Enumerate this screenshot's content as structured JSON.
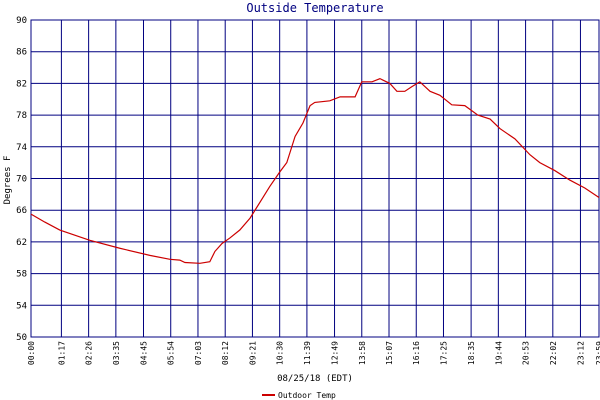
{
  "chart_data": {
    "type": "line",
    "title": "Outside Temperature",
    "x_label": "08/25/18 (EDT)",
    "y_label": "Degrees F",
    "x": [
      0,
      35,
      73,
      149,
      225,
      301,
      352,
      377,
      390,
      428,
      453,
      466,
      484,
      504,
      529,
      555,
      580,
      605,
      630,
      648,
      669,
      689,
      707,
      719,
      757,
      783,
      821,
      838,
      864,
      884,
      909,
      927,
      947,
      965,
      985,
      1011,
      1036,
      1066,
      1099,
      1132,
      1163,
      1188,
      1226,
      1264,
      1289,
      1327,
      1365,
      1403,
      1439
    ],
    "series": [
      {
        "name": "Outdoor Temp",
        "color": "#cc0000",
        "values": [
          65.5,
          64.5,
          63.5,
          62.2,
          61.2,
          60.3,
          59.8,
          59.7,
          59.4,
          59.3,
          59.5,
          60.8,
          61.8,
          62.5,
          63.5,
          65.0,
          67.0,
          69.0,
          70.8,
          72,
          75.3,
          77,
          79.2,
          79.6,
          79.8,
          80.3,
          80.3,
          82.2,
          82.2,
          82.6,
          82,
          81,
          81,
          81.6,
          82.2,
          81,
          80.5,
          79.3,
          79.2,
          78,
          77.5,
          76.3,
          75,
          73,
          72,
          71,
          69.8,
          68.8,
          67.6
        ]
      }
    ],
    "xlim": [
      0,
      1439
    ],
    "xticks": [
      {
        "value": 0,
        "label": "00:00"
      },
      {
        "value": 77,
        "label": "01:17"
      },
      {
        "value": 146,
        "label": "02:26"
      },
      {
        "value": 215,
        "label": "03:35"
      },
      {
        "value": 285,
        "label": "04:45"
      },
      {
        "value": 354,
        "label": "05:54"
      },
      {
        "value": 423,
        "label": "07:03"
      },
      {
        "value": 492,
        "label": "08:12"
      },
      {
        "value": 561,
        "label": "09:21"
      },
      {
        "value": 630,
        "label": "10:30"
      },
      {
        "value": 699,
        "label": "11:39"
      },
      {
        "value": 769,
        "label": "12:49"
      },
      {
        "value": 838,
        "label": "13:58"
      },
      {
        "value": 907,
        "label": "15:07"
      },
      {
        "value": 976,
        "label": "16:16"
      },
      {
        "value": 1045,
        "label": "17:25"
      },
      {
        "value": 1115,
        "label": "18:35"
      },
      {
        "value": 1184,
        "label": "19:44"
      },
      {
        "value": 1253,
        "label": "20:53"
      },
      {
        "value": 1322,
        "label": "22:02"
      },
      {
        "value": 1392,
        "label": "23:12"
      },
      {
        "value": 1439,
        "label": "23:59"
      }
    ],
    "ylim": [
      50,
      90
    ],
    "yticks": [
      50,
      54,
      58,
      62,
      66,
      70,
      74,
      78,
      82,
      86,
      90
    ],
    "grid": true,
    "grid_color": "#000080"
  }
}
